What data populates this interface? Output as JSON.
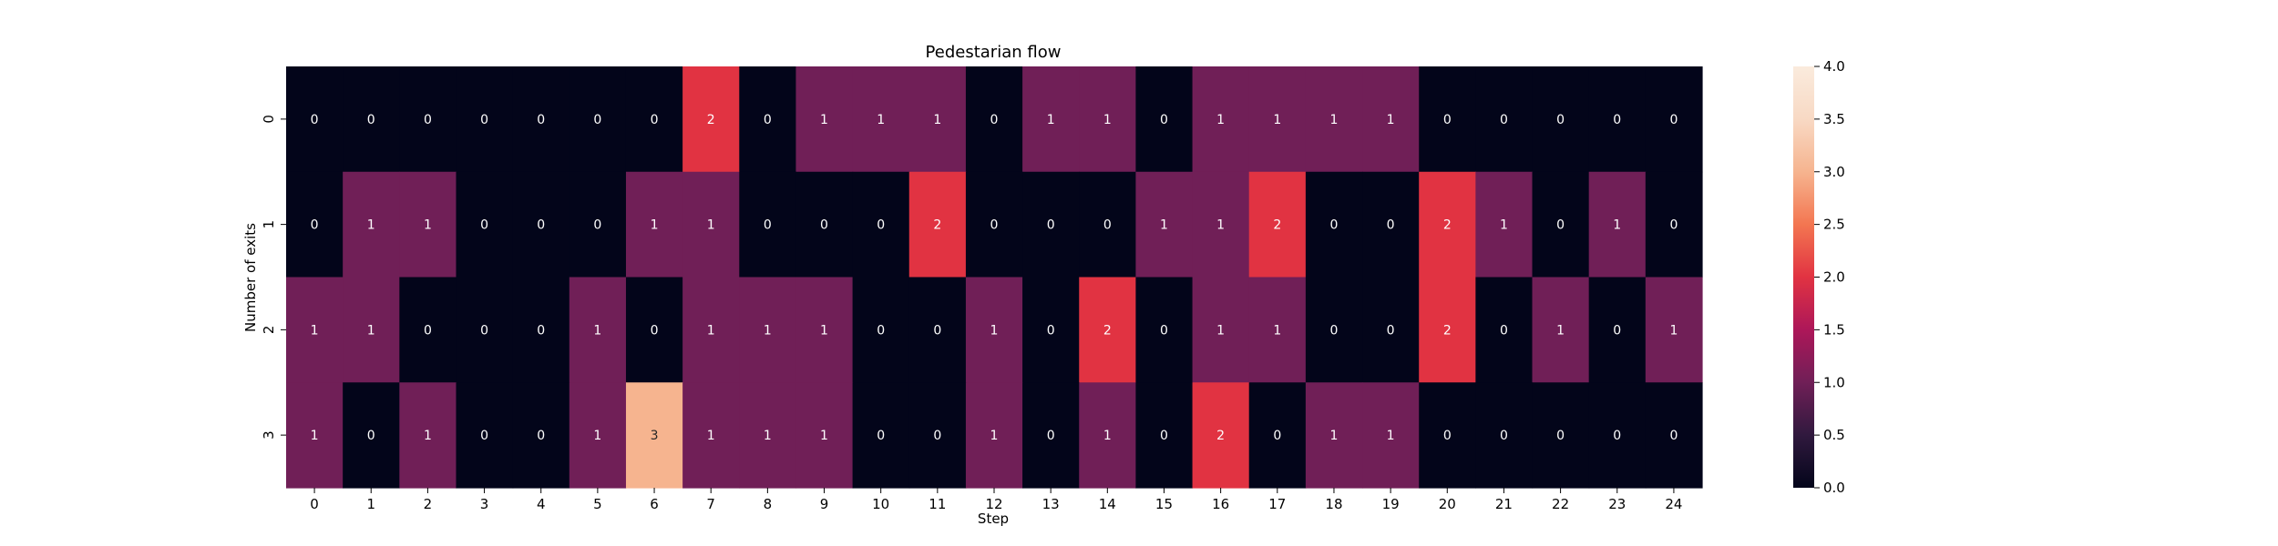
{
  "chart_data": {
    "type": "heatmap",
    "title": "Pedestarian flow",
    "xlabel": "Step",
    "ylabel": "Number of exits",
    "x_categories": [
      "0",
      "1",
      "2",
      "3",
      "4",
      "5",
      "6",
      "7",
      "8",
      "9",
      "10",
      "11",
      "12",
      "13",
      "14",
      "15",
      "16",
      "17",
      "18",
      "19",
      "20",
      "21",
      "22",
      "23",
      "24"
    ],
    "y_categories": [
      "0",
      "1",
      "2",
      "3"
    ],
    "values": [
      [
        0,
        0,
        0,
        0,
        0,
        0,
        0,
        2,
        0,
        1,
        1,
        1,
        0,
        1,
        1,
        0,
        1,
        1,
        1,
        1,
        0,
        0,
        0,
        0,
        0
      ],
      [
        0,
        1,
        1,
        0,
        0,
        0,
        1,
        1,
        0,
        0,
        0,
        2,
        0,
        0,
        0,
        1,
        1,
        2,
        0,
        0,
        2,
        1,
        0,
        1,
        0
      ],
      [
        1,
        1,
        0,
        0,
        0,
        1,
        0,
        1,
        1,
        1,
        0,
        0,
        1,
        0,
        2,
        0,
        1,
        1,
        0,
        0,
        2,
        0,
        1,
        0,
        1
      ],
      [
        1,
        0,
        1,
        0,
        0,
        1,
        3,
        1,
        1,
        1,
        0,
        0,
        1,
        0,
        1,
        0,
        2,
        0,
        1,
        1,
        0,
        0,
        0,
        0,
        0
      ]
    ],
    "colorbar": {
      "min": 0,
      "max": 4,
      "ticks": [
        "0.0",
        "0.5",
        "1.0",
        "1.5",
        "2.0",
        "2.5",
        "3.0",
        "3.5",
        "4.0"
      ],
      "colormap": "rocket"
    },
    "annotations": true
  }
}
